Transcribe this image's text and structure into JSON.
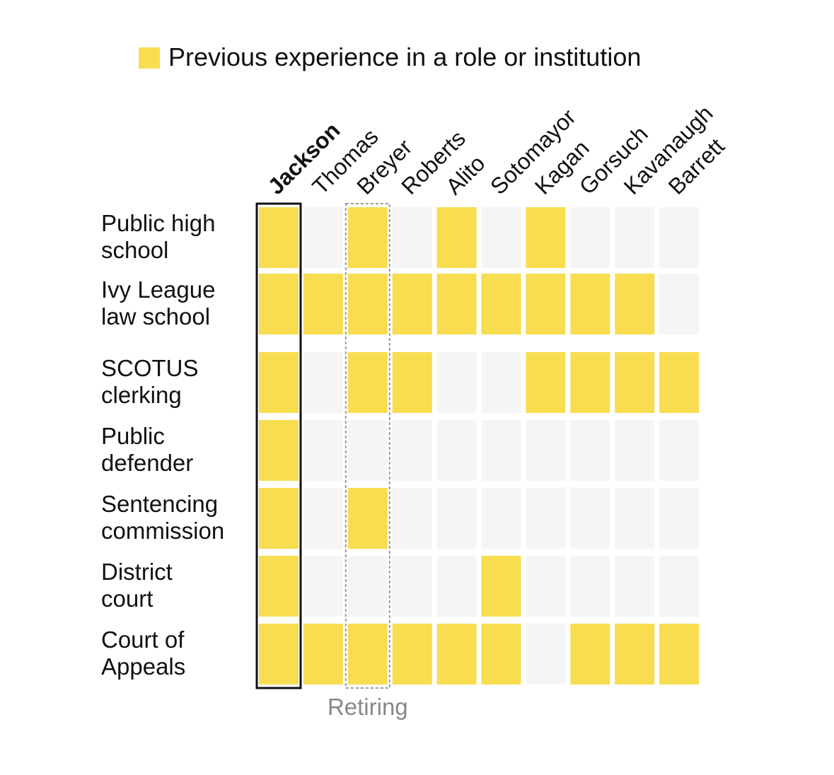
{
  "legend": {
    "label": "Previous experience in a role or institution",
    "color": "#f7dd4f"
  },
  "colors": {
    "filled": "#f7dd4f",
    "empty": "#f5f5f5",
    "highlight_border": "#111111",
    "retiring_border": "#999999"
  },
  "chart_data": {
    "type": "heatmap",
    "columns": [
      "Jackson",
      "Thomas",
      "Breyer",
      "Roberts",
      "Alito",
      "Sotomayor",
      "Kagan",
      "Gorsuch",
      "Kavanaugh",
      "Barrett"
    ],
    "rows": [
      {
        "lines": [
          "Public high",
          "school"
        ],
        "values": [
          1,
          0,
          1,
          0,
          1,
          0,
          1,
          0,
          0,
          0
        ]
      },
      {
        "lines": [
          "Ivy League",
          "law school"
        ],
        "values": [
          1,
          1,
          1,
          1,
          1,
          1,
          1,
          1,
          1,
          0
        ]
      },
      {
        "lines": [
          "SCOTUS",
          "clerking"
        ],
        "values": [
          1,
          0,
          1,
          1,
          0,
          0,
          1,
          1,
          1,
          1
        ]
      },
      {
        "lines": [
          "Public",
          "defender"
        ],
        "values": [
          1,
          0,
          0,
          0,
          0,
          0,
          0,
          0,
          0,
          0
        ]
      },
      {
        "lines": [
          "Sentencing",
          "commission"
        ],
        "values": [
          1,
          0,
          1,
          0,
          0,
          0,
          0,
          0,
          0,
          0
        ]
      },
      {
        "lines": [
          "District",
          "court"
        ],
        "values": [
          1,
          0,
          0,
          0,
          0,
          1,
          0,
          0,
          0,
          0
        ]
      },
      {
        "lines": [
          "Court of",
          "Appeals"
        ],
        "values": [
          1,
          1,
          1,
          1,
          1,
          1,
          0,
          1,
          1,
          1
        ]
      }
    ],
    "highlighted_column": "Jackson",
    "retiring_column": "Breyer",
    "retiring_label": "Retiring"
  }
}
